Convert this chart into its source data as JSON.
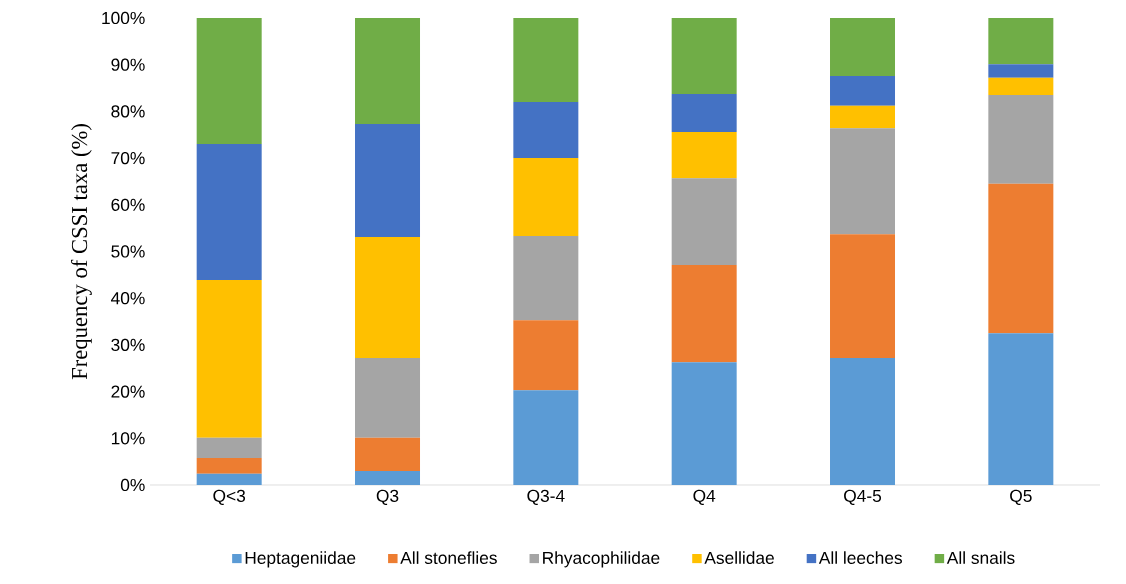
{
  "chart_data": {
    "type": "bar",
    "stacked": true,
    "ylabel": "Frequency of CSSI taxa (%)",
    "categories": [
      "Q<3",
      "Q3",
      "Q3-4",
      "Q4",
      "Q4-5",
      "Q5"
    ],
    "series": [
      {
        "name": "Heptageniidae",
        "color": "#5b9bd5",
        "values": [
          2.4,
          3.0,
          20.3,
          26.3,
          27.2,
          32.5
        ]
      },
      {
        "name": "All stoneflies",
        "color": "#ed7d31",
        "values": [
          3.4,
          7.1,
          15.0,
          20.8,
          26.5,
          32.0
        ]
      },
      {
        "name": "Rhyacophilidae",
        "color": "#a5a5a5",
        "values": [
          4.3,
          17.1,
          18.0,
          18.6,
          22.7,
          19.0
        ]
      },
      {
        "name": "Asellidae",
        "color": "#ffc000",
        "values": [
          33.8,
          25.9,
          16.7,
          9.9,
          4.8,
          3.7
        ]
      },
      {
        "name": "All leeches",
        "color": "#4472c4",
        "values": [
          29.1,
          24.2,
          12.0,
          8.1,
          6.4,
          2.9
        ]
      },
      {
        "name": "All snails",
        "color": "#70ad47",
        "values": [
          27.0,
          22.7,
          18.0,
          16.3,
          12.4,
          9.9
        ]
      }
    ],
    "ylim": [
      0,
      100
    ],
    "yticks": [
      {
        "value": 0,
        "label": "0%"
      },
      {
        "value": 10,
        "label": "10%"
      },
      {
        "value": 20,
        "label": "20%"
      },
      {
        "value": 30,
        "label": "30%"
      },
      {
        "value": 40,
        "label": "40%"
      },
      {
        "value": 50,
        "label": "50%"
      },
      {
        "value": 60,
        "label": "60%"
      },
      {
        "value": 70,
        "label": "70%"
      },
      {
        "value": 80,
        "label": "80%"
      },
      {
        "value": 90,
        "label": "90%"
      },
      {
        "value": 100,
        "label": "100%"
      }
    ],
    "grid": false,
    "legend": "bottom"
  }
}
